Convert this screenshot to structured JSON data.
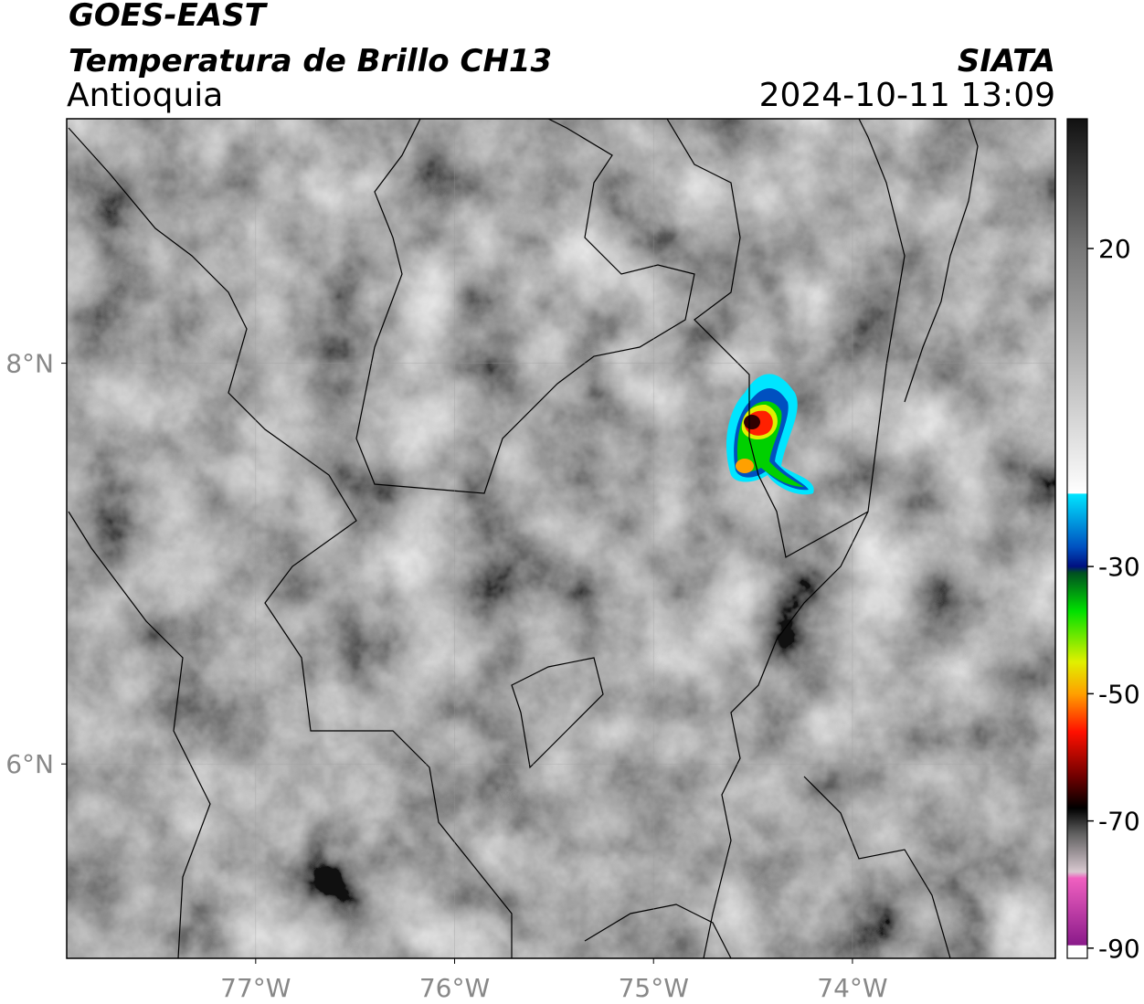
{
  "map": {
    "header": {
      "satellite": "GOES-EAST",
      "product": "Temperatura de Brillo CH13",
      "region": "Antioquia",
      "agency": "SIATA",
      "datetime": "2024-10-11 13:09"
    },
    "xlim": [
      -77.95,
      -72.98
    ],
    "ylim": [
      5.03,
      9.22
    ],
    "xticks": [
      {
        "value": -77,
        "label": "77°W"
      },
      {
        "value": -76,
        "label": "76°W"
      },
      {
        "value": -75,
        "label": "75°W"
      },
      {
        "value": -74,
        "label": "74°W"
      }
    ],
    "yticks": [
      {
        "value": 8,
        "label": "8°N"
      },
      {
        "value": 6,
        "label": "6°N"
      }
    ],
    "grid": true,
    "colorbar": {
      "clim": [
        -91.6,
        40.4
      ],
      "ticks": [
        20,
        -30,
        -50,
        -70,
        -90
      ],
      "colormap": [
        {
          "value": 40.4,
          "color": "#111111"
        },
        {
          "value": 20,
          "color": "#777777"
        },
        {
          "value": -15,
          "color": "#f2f2f2"
        },
        {
          "value": -18.5,
          "color": "#ffffff"
        },
        {
          "value": -18.6,
          "color": "#00e5ff"
        },
        {
          "value": -27,
          "color": "#0050c0"
        },
        {
          "value": -30,
          "color": "#001080"
        },
        {
          "value": -31,
          "color": "#005020"
        },
        {
          "value": -37,
          "color": "#00e000"
        },
        {
          "value": -45,
          "color": "#e0f000"
        },
        {
          "value": -50,
          "color": "#ffa000"
        },
        {
          "value": -56,
          "color": "#ff1000"
        },
        {
          "value": -63,
          "color": "#700000"
        },
        {
          "value": -68,
          "color": "#000000"
        },
        {
          "value": -72,
          "color": "#606060"
        },
        {
          "value": -78,
          "color": "#d8c8d0"
        },
        {
          "value": -79,
          "color": "#f060c0"
        },
        {
          "value": -89.5,
          "color": "#8a1a8a"
        },
        {
          "value": -89.6,
          "color": "#ffffff"
        },
        {
          "value": -91.6,
          "color": "#ffffff"
        }
      ]
    }
  }
}
